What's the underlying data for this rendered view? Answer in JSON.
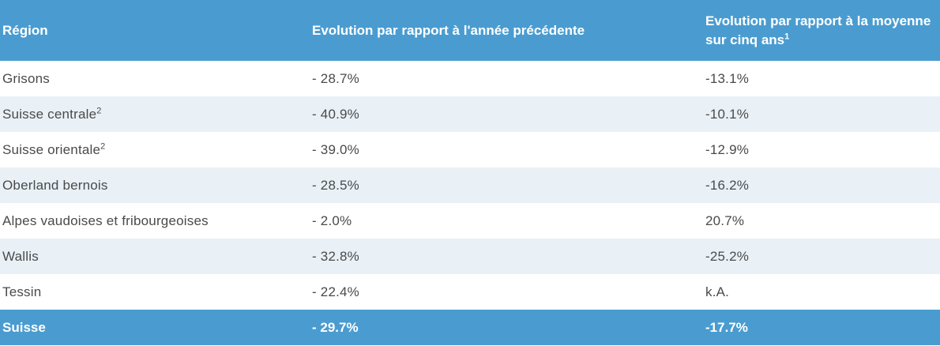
{
  "table": {
    "headers": [
      {
        "text": "Région",
        "sup": ""
      },
      {
        "text": "Evolution par rapport à l'année précédente",
        "sup": ""
      },
      {
        "text": "Evolution par rapport à la moyenne sur cinq ans",
        "sup": "1"
      }
    ],
    "rows": [
      {
        "region": "Grisons",
        "sup": "",
        "prev_year": "- 28.7%",
        "five_year_avg": "-13.1%"
      },
      {
        "region": "Suisse centrale",
        "sup": "2",
        "prev_year": "- 40.9%",
        "five_year_avg": "-10.1%"
      },
      {
        "region": "Suisse orientale",
        "sup": "2",
        "prev_year": "- 39.0%",
        "five_year_avg": "-12.9%"
      },
      {
        "region": "Oberland bernois",
        "sup": "",
        "prev_year": "- 28.5%",
        "five_year_avg": "-16.2%"
      },
      {
        "region": "Alpes vaudoises et fribourgeoises",
        "sup": "",
        "prev_year": "- 2.0%",
        "five_year_avg": "20.7%"
      },
      {
        "region": "Wallis",
        "sup": "",
        "prev_year": "- 32.8%",
        "five_year_avg": "-25.2%"
      },
      {
        "region": "Tessin",
        "sup": "",
        "prev_year": "- 22.4%",
        "five_year_avg": "k.A."
      }
    ],
    "total": {
      "region": "Suisse",
      "prev_year": "- 29.7%",
      "five_year_avg": "-17.7%"
    }
  },
  "colors": {
    "header_bg": "#4a9cd0",
    "stripe_bg": "#e9f1f7",
    "body_text": "#4a4a4a",
    "header_text": "#ffffff"
  }
}
